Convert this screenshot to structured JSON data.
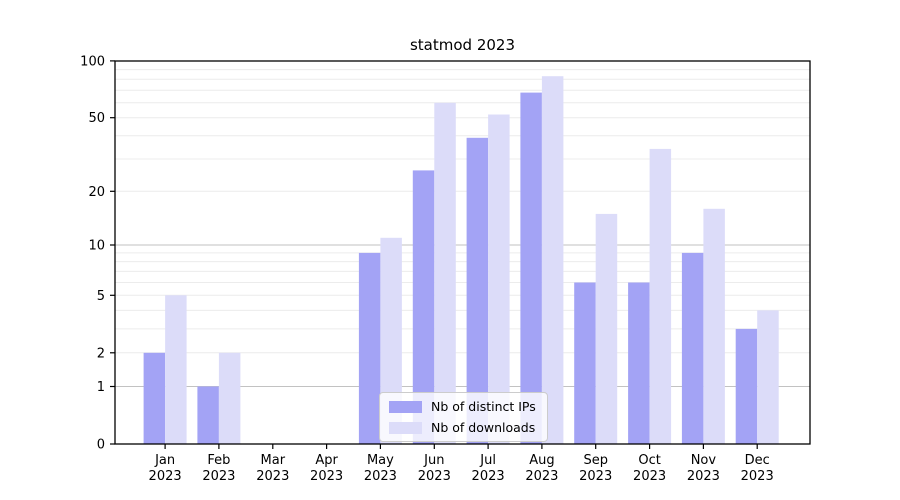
{
  "title": "statmod 2023",
  "chart_data": {
    "type": "bar",
    "title": "statmod 2023",
    "categories": [
      "Jan",
      "Feb",
      "Mar",
      "Apr",
      "May",
      "Jun",
      "Jul",
      "Aug",
      "Sep",
      "Oct",
      "Nov",
      "Dec"
    ],
    "year": "2023",
    "series": [
      {
        "name": "Nb of distinct IPs",
        "color": "#a3a3f5",
        "values": [
          2,
          1,
          0,
          0,
          9,
          26,
          39,
          68,
          6,
          6,
          9,
          3
        ]
      },
      {
        "name": "Nb of downloads",
        "color": "#dcdcf9",
        "values": [
          5,
          2,
          0,
          0,
          11,
          60,
          52,
          83,
          15,
          34,
          16,
          4
        ]
      }
    ],
    "xlabel": "",
    "ylabel": "",
    "y_scale": "log1p",
    "ylim": [
      0,
      100
    ],
    "y_ticks": [
      0,
      1,
      2,
      5,
      10,
      20,
      50,
      100
    ],
    "grid": true,
    "grid_major": [
      1,
      10
    ],
    "grid_minor": [
      2,
      3,
      4,
      5,
      6,
      7,
      8,
      9,
      20,
      30,
      40,
      50,
      60,
      70,
      80,
      90
    ],
    "legend_position": "lower-center"
  },
  "colors": {
    "grid_major": "#c2c2c2",
    "grid_minor": "#ececec",
    "axis": "#000000",
    "text": "#000000"
  }
}
